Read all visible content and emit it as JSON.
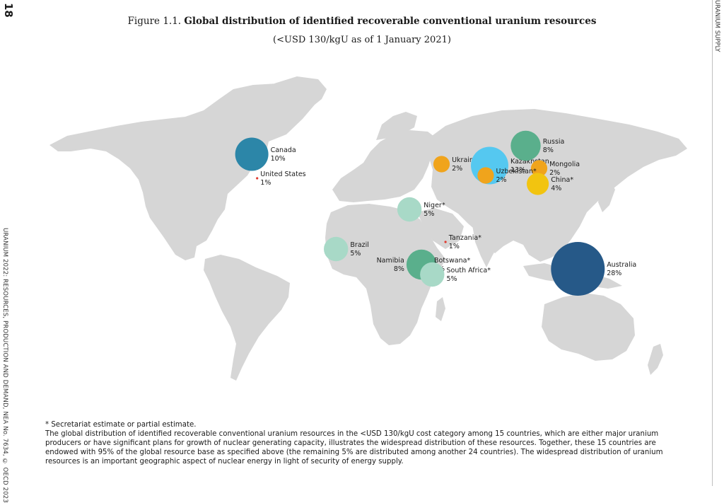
{
  "page": {
    "number": "18",
    "side_left": "URANIUM 2022: RESOURCES, PRODUCTION AND DEMAND, NEA No. 7634, © OECD 2023",
    "side_right": "URANIUM SUPPLY"
  },
  "figure": {
    "label": "Figure 1.1. ",
    "title": "Global distribution of identified recoverable conventional uranium resources",
    "subtitle": "(<USD 130/kgU as of 1 January 2021)"
  },
  "footnote": {
    "asterisk": "* Secretariat estimate or partial estimate.",
    "body": "The global distribution of identified recoverable conventional uranium resources in the <USD 130/kgU cost category among 15 countries, which are either major uranium producers or have significant plans for growth of nuclear generating capacity, illustrates the widespread distribution of these resources. Together, these 15 countries are endowed with 95% of the global resource base as specified above (the remaining 5% are distributed among another 24 countries). The widespread distribution of uranium resources is an important geographic aspect of nuclear energy in light of security of energy supply."
  },
  "colors": {
    "land": "#d6d6d6",
    "pct_1": "#e03a2f",
    "pct_2": "#f0a41c",
    "pct_4": "#f2c410",
    "pct_5": "#a8d9c7",
    "pct_8": "#5aaf8c",
    "pct_10": "#2c86a8",
    "pct_13": "#55c8f0",
    "pct_28": "#265988"
  },
  "chart_data": {
    "type": "bubble-map",
    "unit": "%",
    "points": [
      {
        "country": "Canada",
        "value": 10,
        "label": "10%",
        "lon": -110,
        "lat": 56
      },
      {
        "country": "United States",
        "value": 1,
        "label": "1%",
        "lon": -106,
        "lat": 39
      },
      {
        "country": "Brazil",
        "value": 5,
        "label": "5%",
        "lon": -47,
        "lat": -11
      },
      {
        "country": "Niger*",
        "value": 5,
        "label": "5%",
        "lon": 8,
        "lat": 17
      },
      {
        "country": "Namibia",
        "value": 8,
        "label": "8%",
        "lon": 17,
        "lat": -22
      },
      {
        "country": "Botswana*",
        "value": 1,
        "label": "1%",
        "lon": 24,
        "lat": -22
      },
      {
        "country": "South Africa*",
        "value": 5,
        "label": "5%",
        "lon": 25,
        "lat": -29
      },
      {
        "country": "Tanzania*",
        "value": 1,
        "label": "1%",
        "lon": 35,
        "lat": -6
      },
      {
        "country": "Ukraine",
        "value": 2,
        "label": "2%",
        "lon": 32,
        "lat": 49
      },
      {
        "country": "Kazakhstan",
        "value": 13,
        "label": "13%",
        "lon": 68,
        "lat": 48
      },
      {
        "country": "Russia",
        "value": 8,
        "label": "8%",
        "lon": 95,
        "lat": 62
      },
      {
        "country": "Mongolia",
        "value": 2,
        "label": "2%",
        "lon": 105,
        "lat": 46
      },
      {
        "country": "Uzbekistan*",
        "value": 2,
        "label": "2%",
        "lon": 65,
        "lat": 41
      },
      {
        "country": "China*",
        "value": 4,
        "label": "4%",
        "lon": 104,
        "lat": 35
      },
      {
        "country": "Australia",
        "value": 28,
        "label": "28%",
        "lon": 134,
        "lat": -25
      }
    ]
  }
}
